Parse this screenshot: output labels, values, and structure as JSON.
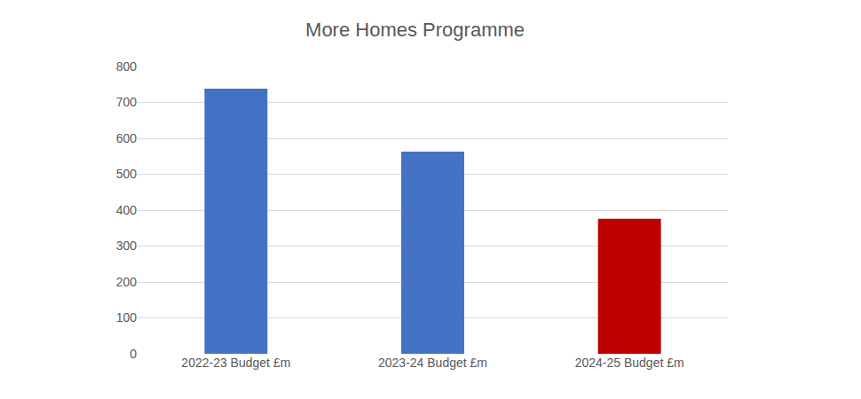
{
  "chart_data": {
    "type": "bar",
    "title": "More Homes Programme",
    "categories": [
      "2022-23 Budget £m",
      "2023-24 Budget £m",
      "2024-25 Budget £m"
    ],
    "values": [
      738,
      563,
      376
    ],
    "colors": [
      "#4472c4",
      "#4472c4",
      "#c00000"
    ],
    "ylim": [
      0,
      800
    ],
    "yticks": [
      0,
      100,
      200,
      300,
      400,
      500,
      600,
      700,
      800
    ],
    "grid": true
  }
}
